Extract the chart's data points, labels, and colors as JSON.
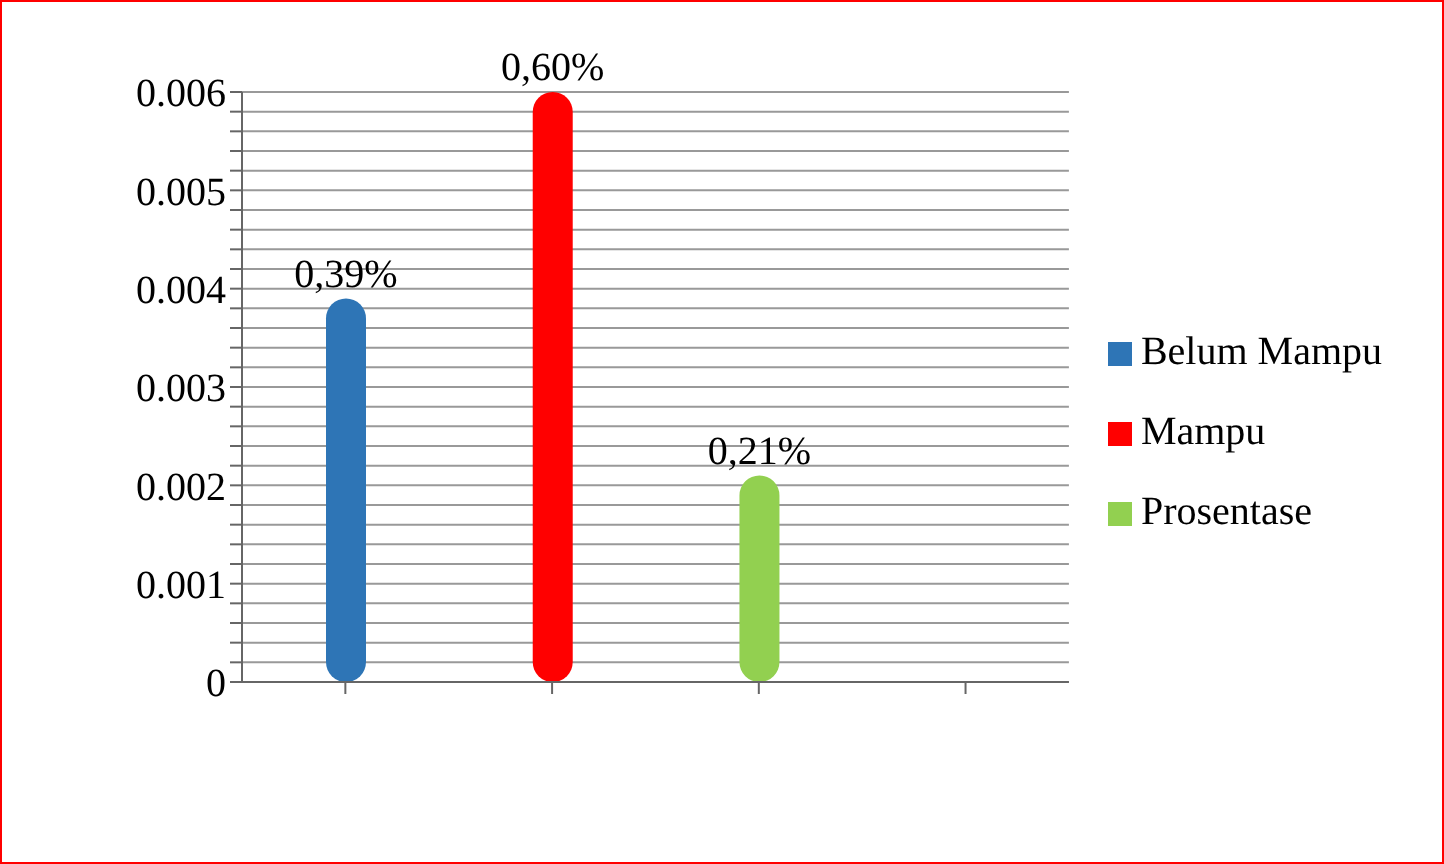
{
  "chart_data": {
    "type": "bar",
    "stacked": true,
    "categories": [
      null,
      null,
      null,
      null
    ],
    "series": [
      {
        "name": "Belum Mampu",
        "color": "#2e75b6",
        "values": [
          0.0039,
          null,
          null,
          null
        ],
        "value_labels": [
          "0,39%",
          null,
          null,
          null
        ]
      },
      {
        "name": "Mampu",
        "color": "#ff0000",
        "values": [
          null,
          0.006,
          null,
          null
        ],
        "value_labels": [
          null,
          "0,60%",
          null,
          null
        ]
      },
      {
        "name": "Prosentase",
        "color": "#92d050",
        "values": [
          null,
          null,
          0.0021,
          null
        ],
        "value_labels": [
          null,
          null,
          "0,21%",
          null
        ]
      }
    ],
    "ylim": [
      0,
      0.006
    ],
    "yticks": [
      0,
      {
        "value": 0.0002,
        "label": null
      },
      {
        "value": 0.0004,
        "label": null
      },
      {
        "value": 0.0006,
        "label": null
      },
      {
        "value": 0.0008,
        "label": null
      },
      0.001,
      {
        "value": 0.0012,
        "label": null
      },
      {
        "value": 0.0014,
        "label": null
      },
      {
        "value": 0.0016,
        "label": null
      },
      {
        "value": 0.0018,
        "label": null
      },
      0.002,
      {
        "value": 0.0022,
        "label": null
      },
      {
        "value": 0.0024,
        "label": null
      },
      {
        "value": 0.0026,
        "label": null
      },
      {
        "value": 0.0028,
        "label": null
      },
      0.003,
      {
        "value": 0.0032,
        "label": null
      },
      {
        "value": 0.0034,
        "label": null
      },
      {
        "value": 0.0036,
        "label": null
      },
      {
        "value": 0.0038,
        "label": null
      },
      0.004,
      {
        "value": 0.0042,
        "label": null
      },
      {
        "value": 0.0044,
        "label": null
      },
      {
        "value": 0.0046,
        "label": null
      },
      {
        "value": 0.0048,
        "label": null
      },
      0.005,
      {
        "value": 0.0052,
        "label": null
      },
      {
        "value": 0.0054,
        "label": null
      },
      {
        "value": 0.0056,
        "label": null
      },
      {
        "value": 0.0058,
        "label": null
      },
      0.006
    ],
    "grid": "y",
    "legend": "right"
  }
}
